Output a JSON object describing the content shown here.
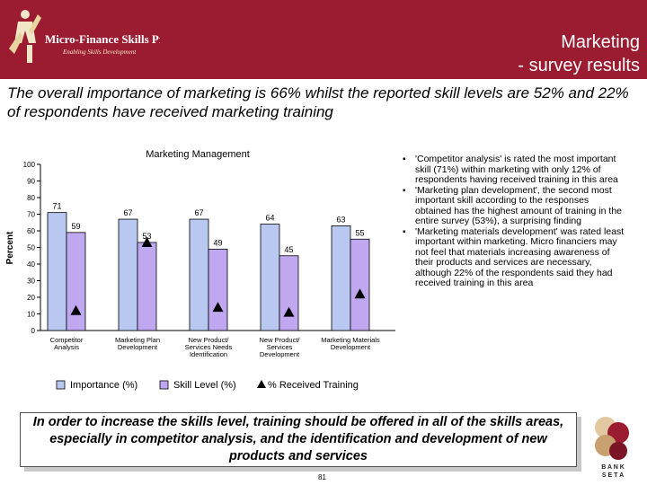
{
  "header": {
    "logo_text": "Micro-Finance Skills Project",
    "logo_tagline": "Enabling Skills Development",
    "title_line1": "Marketing",
    "title_line2": "- survey results",
    "brand_color": "#9b1b30"
  },
  "subtitle": "The overall importance of marketing is 66% whilst the reported skill levels are 52% and 22% of respondents have received marketing training",
  "chart_data": {
    "type": "bar",
    "title": "Marketing Management",
    "ylabel": "Percent",
    "xlabel": "",
    "ylim": [
      0,
      100
    ],
    "yticks": [
      0,
      10,
      20,
      30,
      40,
      50,
      60,
      70,
      80,
      90,
      100
    ],
    "grid": false,
    "legend_position": "bottom",
    "categories": [
      [
        "Competitor",
        "Analysis"
      ],
      [
        "Marketing Plan",
        "Development"
      ],
      [
        "New Product/",
        "Services Needs",
        "Identification"
      ],
      [
        "New Product/",
        "Services",
        "Development"
      ],
      [
        "Marketing Materials",
        "Development"
      ]
    ],
    "series": [
      {
        "name": "Importance (%)",
        "type": "bar",
        "color": "#b8c8f0",
        "values": [
          71,
          67,
          67,
          64,
          63
        ],
        "labels": [
          "71",
          "67",
          "67",
          "64",
          "63"
        ]
      },
      {
        "name": "Skill Level (%)",
        "type": "bar",
        "color": "#c0a8f0",
        "values": [
          59,
          53,
          49,
          45,
          55
        ],
        "labels": [
          "59",
          "53",
          "49",
          "45",
          "55"
        ]
      },
      {
        "name": "% Received Training",
        "type": "marker",
        "marker": "triangle",
        "values": [
          12,
          53,
          14,
          11,
          22
        ]
      }
    ]
  },
  "bullets": [
    "'Competitor analysis' is rated the most important skill (71%) within marketing with only 12% of respondents having received training in this area",
    "'Marketing plan development', the second most important skill according to the responses obtained has the highest amount of training in the entire survey (53%), a surprising finding",
    "'Marketing materials development' was rated least important within marketing. Micro financiers may not feel that materials increasing awareness of their products and services are necessary, although 22% of the respondents said they had received training in this area"
  ],
  "callout": "In order to increase the skills level, training should be offered in all of the skills areas, especially in competitor analysis, and the identification and development of new products and services",
  "page_number": "81",
  "bank_logo": {
    "line1": "B A N K",
    "line2": "S E T A"
  }
}
